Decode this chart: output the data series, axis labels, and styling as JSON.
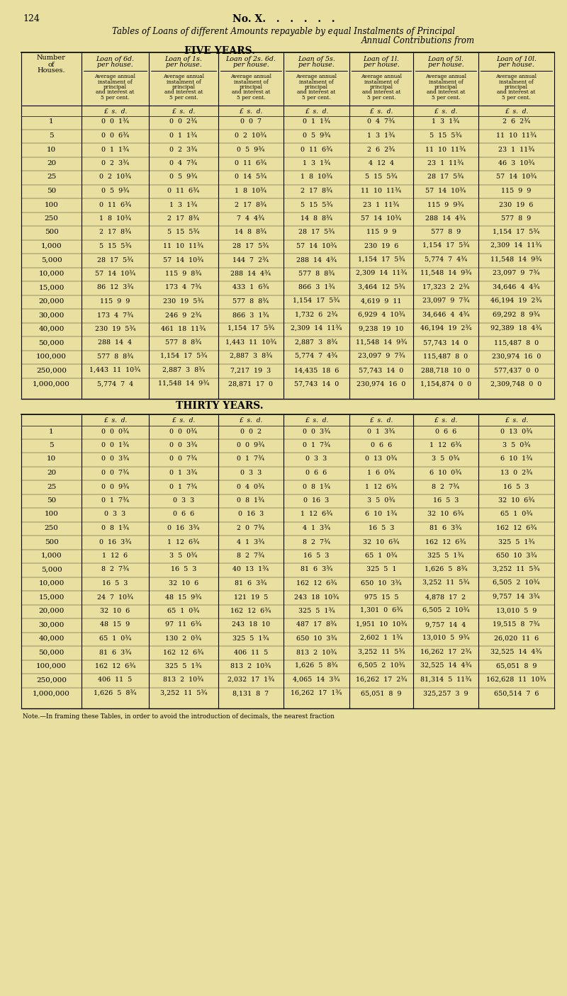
{
  "page_num": "124",
  "title_center": "No. X.",
  "subtitle": "Tables of Loans of different Amounts repayable by equal Instalments of Principal",
  "subtitle2": "Annual Contributions from",
  "section1_title": "FIVE YEARS.",
  "section2_title": "THIRTY YEARS.",
  "bg_color": "#e8dfa0",
  "five_year_rows": [
    [
      "1",
      "0  0  1¾",
      "0  0  2¾",
      "0  0  7",
      "0  1  1¾",
      "0  4  7¾",
      "1  3  1¾",
      "2  6  2¾"
    ],
    [
      "5",
      "0  0  6¾",
      "0  1  1¾",
      "0  2  10¾",
      "0  5  9¾",
      "1  3  1¾",
      "5  15  5¾",
      "11  10  11¾"
    ],
    [
      "10",
      "0  1  1¾",
      "0  2  3¾",
      "0  5  9¾",
      "0  11  6¾",
      "2  6  2¾",
      "11  10  11¾",
      "23  1  11¾"
    ],
    [
      "20",
      "0  2  3¾",
      "0  4  7¾",
      "0  11  6¾",
      "1  3  1¾",
      "4  12  4",
      "23  1  11¾",
      "46  3  10¾"
    ],
    [
      "25",
      "0  2  10¾",
      "0  5  9¾",
      "0  14  5¾",
      "1  8  10¾",
      "5  15  5¾",
      "28  17  5¾",
      "57  14  10¾"
    ],
    [
      "50",
      "0  5  9¾",
      "0  11  6¾",
      "1  8  10¾",
      "2  17  8¾",
      "11  10  11¾",
      "57  14  10¾",
      "115  9  9"
    ],
    [
      "100",
      "0  11  6¾",
      "1  3  1¾",
      "2  17  8¾",
      "5  15  5¾",
      "23  1  11¾",
      "115  9  9¾",
      "230  19  6"
    ],
    [
      "250",
      "1  8  10¾",
      "2  17  8¾",
      "7  4  4¾",
      "14  8  8¾",
      "57  14  10¾",
      "288  14  4¾",
      "577  8  9"
    ],
    [
      "500",
      "2  17  8¾",
      "5  15  5¾",
      "14  8  8¾",
      "28  17  5¾",
      "115  9  9",
      "577  8  9",
      "1,154  17  5¾"
    ],
    [
      "1,000",
      "5  15  5¾",
      "11  10  11¾",
      "28  17  5¾",
      "57  14  10¾",
      "230  19  6",
      "1,154  17  5¾",
      "2,309  14  11¾"
    ],
    [
      "5,000",
      "28  17  5¾",
      "57  14  10¾",
      "144  7  2¾",
      "288  14  4¾",
      "1,154  17  5¾",
      "5,774  7  4¾",
      "11,548  14  9¾"
    ],
    [
      "10,000",
      "57  14  10¾",
      "115  9  8¾",
      "288  14  4¾",
      "577  8  8¾",
      "2,309  14  11¾",
      "11,548  14  9¾",
      "23,097  9  7¾"
    ],
    [
      "15,000",
      "86  12  3¾",
      "173  4  7¾",
      "433  1  6¾",
      "866  3  1¾",
      "3,464  12  5¾",
      "17,323  2  2¾",
      "34,646  4  4¾"
    ],
    [
      "20,000",
      "115  9  9",
      "230  19  5¾",
      "577  8  8¾",
      "1,154  17  5¾",
      "4,619  9  11",
      "23,097  9  7¾",
      "46,194  19  2¾"
    ],
    [
      "30,000",
      "173  4  7¾",
      "246  9  2¾",
      "866  3  1¾",
      "1,732  6  2¾",
      "6,929  4  10¾",
      "34,646  4  4¾",
      "69,292  8  9¾"
    ],
    [
      "40,000",
      "230  19  5¾",
      "461  18  11¾",
      "1,154  17  5¾",
      "2,309  14  11¾",
      "9,238  19  10",
      "46,194  19  2¾",
      "92,389  18  4¾"
    ],
    [
      "50,000",
      "288  14  4",
      "577  8  8¾",
      "1,443  11  10¾",
      "2,887  3  8¾",
      "11,548  14  9¾",
      "57,743  14  0",
      "115,487  8  0"
    ],
    [
      "100,000",
      "577  8  8¾",
      "1,154  17  5¾",
      "2,887  3  8¾",
      "5,774  7  4¾",
      "23,097  9  7¾",
      "115,487  8  0",
      "230,974  16  0"
    ],
    [
      "250,000",
      "1,443  11  10¾",
      "2,887  3  8¾",
      "7,217  19  3",
      "14,435  18  6",
      "57,743  14  0",
      "288,718  10  0",
      "577,437  0  0"
    ],
    [
      "1,000,000",
      "5,774  7  4",
      "11,548  14  9¾",
      "28,871  17  0",
      "57,743  14  0",
      "230,974  16  0",
      "1,154,874  0  0",
      "2,309,748  0  0"
    ]
  ],
  "thirty_year_rows": [
    [
      "1",
      "0  0  0¾",
      "0  0  0¾",
      "0  0  2",
      "0  0  3¾",
      "0  1  3¾",
      "0  6  6",
      "0  13  0¾"
    ],
    [
      "5",
      "0  0  1¾",
      "0  0  3¾",
      "0  0  9¾",
      "0  1  7¾",
      "0  6  6",
      "1  12  6¾",
      "3  5  0¾"
    ],
    [
      "10",
      "0  0  3¾",
      "0  0  7¾",
      "0  1  7¾",
      "0  3  3",
      "0  13  0¾",
      "3  5  0¾",
      "6  10  1¾"
    ],
    [
      "20",
      "0  0  7¾",
      "0  1  3¾",
      "0  3  3",
      "0  6  6",
      "1  6  0¾",
      "6  10  0¾",
      "13  0  2¾"
    ],
    [
      "25",
      "0  0  9¾",
      "0  1  7¾",
      "0  4  0¾",
      "0  8  1¾",
      "1  12  6¾",
      "8  2  7¾",
      "16  5  3"
    ],
    [
      "50",
      "0  1  7¾",
      "0  3  3",
      "0  8  1¾",
      "0  16  3",
      "3  5  0¾",
      "16  5  3",
      "32  10  6¾"
    ],
    [
      "100",
      "0  3  3",
      "0  6  6",
      "0  16  3",
      "1  12  6¾",
      "6  10  1¾",
      "32  10  6¾",
      "65  1  0¾"
    ],
    [
      "250",
      "0  8  1¾",
      "0  16  3¾",
      "2  0  7¾",
      "4  1  3¾",
      "16  5  3",
      "81  6  3¾",
      "162  12  6¾"
    ],
    [
      "500",
      "0  16  3¾",
      "1  12  6¾",
      "4  1  3¾",
      "8  2  7¾",
      "32  10  6¾",
      "162  12  6¾",
      "325  5  1¾"
    ],
    [
      "1,000",
      "1  12  6",
      "3  5  0¾",
      "8  2  7¾",
      "16  5  3",
      "65  1  0¾",
      "325  5  1¾",
      "650  10  3¾"
    ],
    [
      "5,000",
      "8  2  7¾",
      "16  5  3",
      "40  13  1¾",
      "81  6  3¾",
      "325  5  1",
      "1,626  5  8¾",
      "3,252  11  5¾"
    ],
    [
      "10,000",
      "16  5  3",
      "32  10  6",
      "81  6  3¾",
      "162  12  6¾",
      "650  10  3¾",
      "3,252  11  5¾",
      "6,505  2  10¾"
    ],
    [
      "15,000",
      "24  7  10¾",
      "48  15  9¾",
      "121  19  5",
      "243  18  10¾",
      "975  15  5",
      "4,878  17  2",
      "9,757  14  3¾"
    ],
    [
      "20,000",
      "32  10  6",
      "65  1  0¾",
      "162  12  6¾",
      "325  5  1¾",
      "1,301  0  6¾",
      "6,505  2  10¾",
      "13,010  5  9"
    ],
    [
      "30,000",
      "48  15  9",
      "97  11  6¾",
      "243  18  10",
      "487  17  8¾",
      "1,951  10  10¾",
      "9,757  14  4",
      "19,515  8  7¾"
    ],
    [
      "40,000",
      "65  1  0¾",
      "130  2  0¾",
      "325  5  1¾",
      "650  10  3¾",
      "2,602  1  1¾",
      "13,010  5  9¾",
      "26,020  11  6"
    ],
    [
      "50,000",
      "81  6  3¾",
      "162  12  6¾",
      "406  11  5",
      "813  2  10¾",
      "3,252  11  5¾",
      "16,262  17  2¾",
      "32,525  14  4¾"
    ],
    [
      "100,000",
      "162  12  6¾",
      "325  5  1¾",
      "813  2  10¾",
      "1,626  5  8¾",
      "6,505  2  10¾",
      "32,525  14  4¾",
      "65,051  8  9"
    ],
    [
      "250,000",
      "406  11  5",
      "813  2  10¾",
      "2,032  17  1¾",
      "4,065  14  3¾",
      "16,262  17  2¾",
      "81,314  5  11¾",
      "162,628  11  10¾"
    ],
    [
      "1,000,000",
      "1,626  5  8¾",
      "3,252  11  5¾",
      "8,131  8  7",
      "16,262  17  1¾",
      "65,051  8  9",
      "325,257  3  9",
      "650,514  7  6"
    ]
  ],
  "note": "Note.—In framing these Tables, in order to avoid the introduction of decimals, the nearest fraction"
}
